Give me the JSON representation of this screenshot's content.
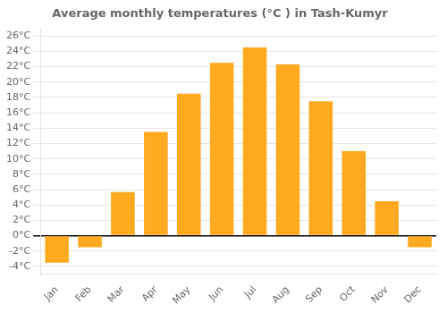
{
  "chart_data": {
    "type": "bar",
    "title": "Average monthly temperatures (°C ) in Tash-Kumyr",
    "categories": [
      "Jan",
      "Feb",
      "Mar",
      "Apr",
      "May",
      "Jun",
      "Jul",
      "Aug",
      "Sep",
      "Oct",
      "Nov",
      "Dec"
    ],
    "values": [
      -3.5,
      -1.5,
      5.7,
      13.5,
      18.5,
      22.5,
      24.5,
      22.3,
      17.5,
      11.0,
      4.5,
      -1.5
    ],
    "color": "#FFAA20",
    "ylim": [
      -5,
      27
    ],
    "yticks": [
      {
        "value": -4,
        "label": "-4°C"
      },
      {
        "value": -2,
        "label": "-2°C"
      },
      {
        "value": 0,
        "label": "0°C"
      },
      {
        "value": 2,
        "label": "2°C"
      },
      {
        "value": 4,
        "label": "4°C"
      },
      {
        "value": 6,
        "label": "6°C"
      },
      {
        "value": 8,
        "label": "8°C"
      },
      {
        "value": 10,
        "label": "10°C"
      },
      {
        "value": 12,
        "label": "12°C"
      },
      {
        "value": 14,
        "label": "14°C"
      },
      {
        "value": 16,
        "label": "16°C"
      },
      {
        "value": 18,
        "label": "18°C"
      },
      {
        "value": 20,
        "label": "20°C"
      },
      {
        "value": 22,
        "label": "22°C"
      },
      {
        "value": 24,
        "label": "24°C"
      },
      {
        "value": 26,
        "label": "26°C"
      }
    ],
    "grid": true
  }
}
